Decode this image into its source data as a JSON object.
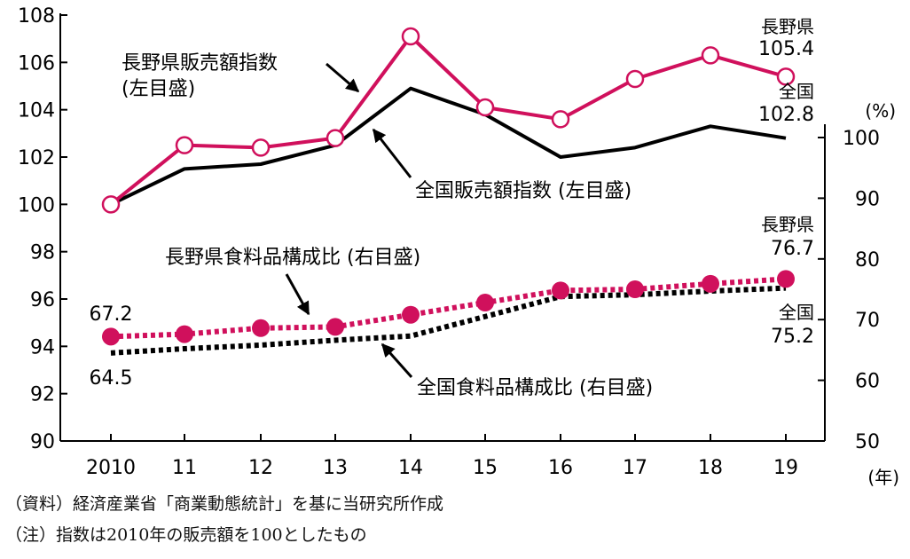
{
  "chart_data": {
    "type": "line",
    "categories": [
      "2010",
      "11",
      "12",
      "13",
      "14",
      "15",
      "16",
      "17",
      "18",
      "19"
    ],
    "x_unit": "(年)",
    "left_axis": {
      "ylim": [
        90,
        108
      ],
      "ticks": [
        90,
        92,
        94,
        96,
        98,
        100,
        102,
        104,
        106,
        108
      ]
    },
    "right_axis": {
      "ylim": [
        50,
        100
      ],
      "ticks": [
        50,
        60,
        70,
        80,
        90,
        100
      ],
      "unit": "(%)"
    },
    "grid": false,
    "series": [
      {
        "name": "長野県販売額指数",
        "axis_label": "(左目盛)",
        "axis": "left",
        "values": [
          100.0,
          102.5,
          102.4,
          102.8,
          107.1,
          104.1,
          103.6,
          105.3,
          106.3,
          105.4
        ],
        "end_region": "長野県",
        "end_value_label": "105.4",
        "color": "#d0105c",
        "style": "solid",
        "marker": "open-circle"
      },
      {
        "name": "全国販売額指数 (左目盛)",
        "axis": "left",
        "values": [
          100.0,
          101.5,
          101.7,
          102.5,
          104.9,
          103.8,
          102.0,
          102.4,
          103.3,
          102.8
        ],
        "end_region": "全国",
        "end_value_label": "102.8",
        "color": "#000000",
        "style": "solid",
        "marker": "none"
      },
      {
        "name": "長野県食料品構成比 (右目盛)",
        "axis": "right",
        "values": [
          67.2,
          67.6,
          68.6,
          68.8,
          70.8,
          72.8,
          74.8,
          75.0,
          75.9,
          76.7
        ],
        "start_value_label": "67.2",
        "end_region": "長野県",
        "end_value_label": "76.7",
        "color": "#d0105c",
        "style": "dotted",
        "marker": "filled-circle"
      },
      {
        "name": "全国食料品構成比 (右目盛)",
        "axis": "right",
        "values": [
          64.5,
          65.2,
          65.8,
          66.6,
          67.3,
          70.5,
          73.8,
          74.1,
          74.7,
          75.2
        ],
        "start_value_label": "64.5",
        "end_region": "全国",
        "end_value_label": "75.2",
        "color": "#000000",
        "style": "dotted",
        "marker": "none"
      }
    ]
  },
  "notes": {
    "source": "（資料）経済産業省「商業動態統計」を基に当研究所作成",
    "note": "（注）指数は2010年の販売額を100としたもの"
  }
}
